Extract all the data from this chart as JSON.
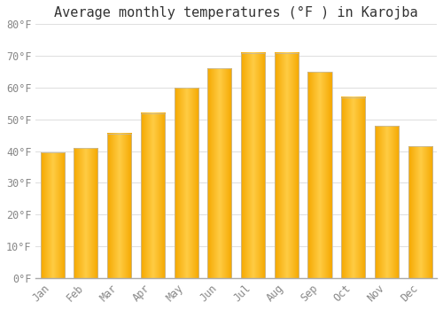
{
  "title": "Average monthly temperatures (°F ) in Karojba",
  "months": [
    "Jan",
    "Feb",
    "Mar",
    "Apr",
    "May",
    "Jun",
    "Jul",
    "Aug",
    "Sep",
    "Oct",
    "Nov",
    "Dec"
  ],
  "values": [
    39.5,
    41.0,
    45.5,
    52.0,
    60.0,
    66.0,
    71.0,
    71.0,
    65.0,
    57.0,
    48.0,
    41.5
  ],
  "bar_color_center": "#FFCC44",
  "bar_color_edge": "#F5A800",
  "bar_edge_color": "#BBBBBB",
  "ylim": [
    0,
    80
  ],
  "yticks": [
    0,
    10,
    20,
    30,
    40,
    50,
    60,
    70,
    80
  ],
  "ytick_labels": [
    "0°F",
    "10°F",
    "20°F",
    "30°F",
    "40°F",
    "50°F",
    "60°F",
    "70°F",
    "80°F"
  ],
  "background_color": "#FFFFFF",
  "grid_color": "#E0E0E0",
  "title_fontsize": 11,
  "tick_fontsize": 8.5,
  "font_family": "monospace",
  "tick_color": "#888888"
}
